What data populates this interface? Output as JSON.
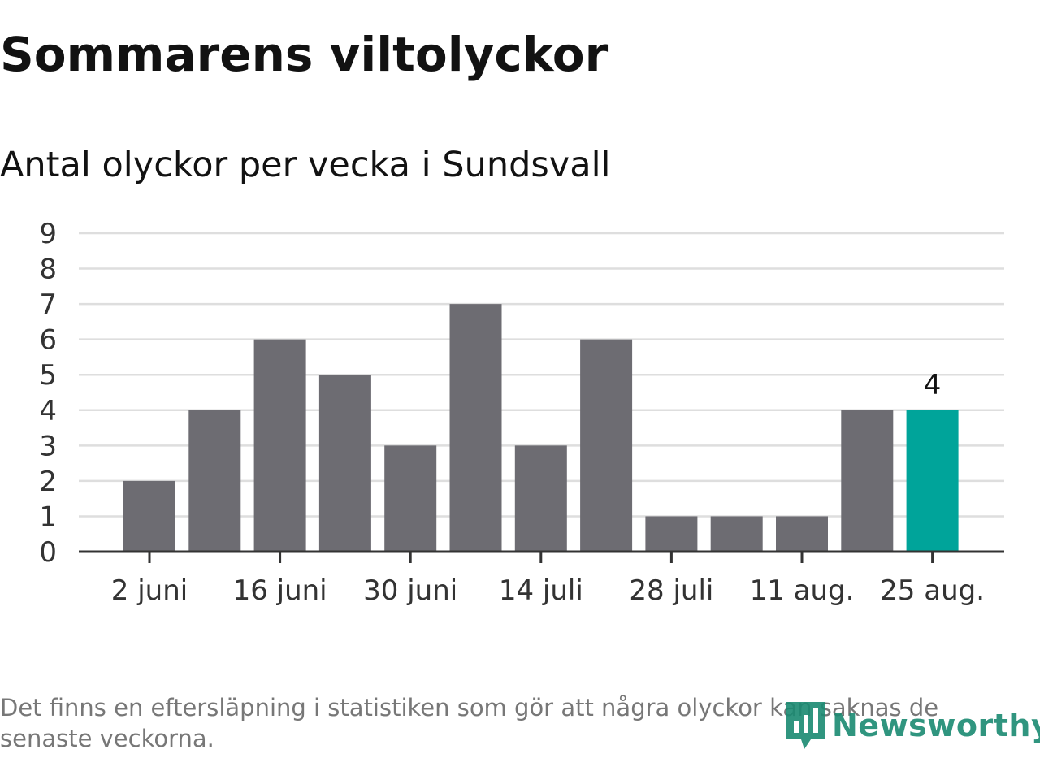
{
  "title": "Sommarens viltolyckor",
  "subtitle": "Antal olyckor per vecka i Sundsvall",
  "footnote": "Det finns en eftersläpning i statistiken som gör att några olyckor kan saknas de senaste veckorna.",
  "brand": {
    "name": "Newsworthy",
    "icon": "newsworthy-logo-icon"
  },
  "colors": {
    "bar": "#6d6c72",
    "highlight": "#00a49a",
    "grid": "#dedede",
    "axis": "#333333",
    "brand": "#1a8a72"
  },
  "chart_data": {
    "type": "bar",
    "title": "Sommarens viltolyckor",
    "subtitle": "Antal olyckor per vecka i Sundsvall",
    "xlabel": "",
    "ylabel": "",
    "ylim": [
      0,
      9
    ],
    "yticks": [
      0,
      1,
      2,
      3,
      4,
      5,
      6,
      7,
      8,
      9
    ],
    "x_tick_labels": [
      {
        "label": "2 juni",
        "at_bar": 0
      },
      {
        "label": "16 juni",
        "at_bar": 2
      },
      {
        "label": "30 juni",
        "at_bar": 4
      },
      {
        "label": "14 juli",
        "at_bar": 6
      },
      {
        "label": "28 juli",
        "at_bar": 8
      },
      {
        "label": "11 aug.",
        "at_bar": 10
      },
      {
        "label": "25 aug.",
        "at_bar": 12
      }
    ],
    "values": [
      2,
      4,
      6,
      5,
      3,
      7,
      3,
      6,
      1,
      1,
      1,
      4,
      4
    ],
    "highlight_index": 12,
    "highlight_label": "4",
    "grid": true
  }
}
